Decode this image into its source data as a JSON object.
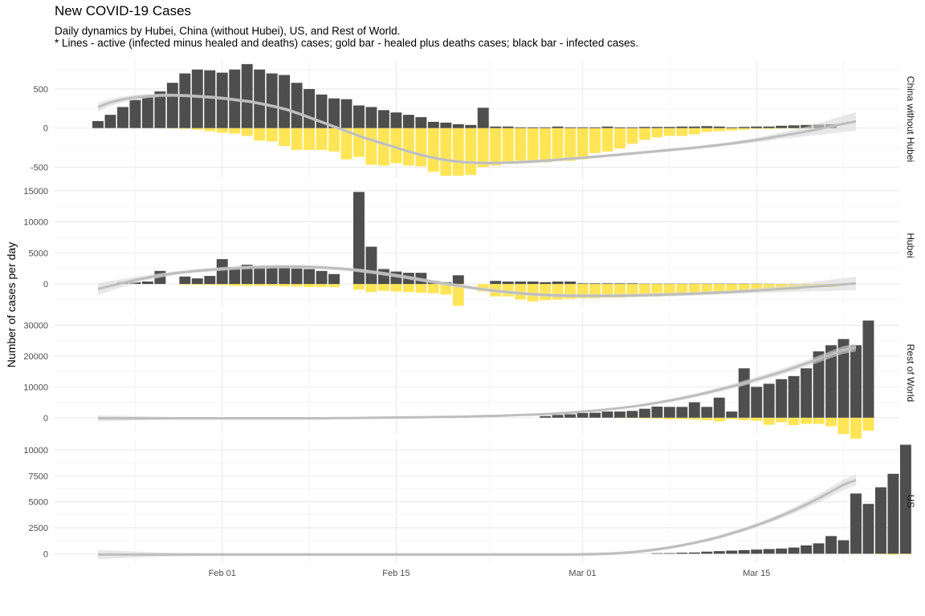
{
  "chart_data": {
    "type": "bar",
    "title": "New COVID-19 Cases",
    "subtitle_line1": "Daily dynamics by Hubei, China (without Hubei), US, and Rest of World.",
    "subtitle_line2": "* Lines - active (infected minus healed and deaths) cases; gold bar - healed plus deaths cases; black bar - infected cases.",
    "ylabel": "Number of cases per day",
    "xlabel": "",
    "x_start": "2020-01-22",
    "x_end": "2020-03-23",
    "x_ticks": [
      {
        "date": "2020-02-01",
        "label": "Feb 01"
      },
      {
        "date": "2020-02-15",
        "label": "Feb 15"
      },
      {
        "date": "2020-03-01",
        "label": "Mar 01"
      },
      {
        "date": "2020-03-15",
        "label": "Mar 15"
      }
    ],
    "colors": {
      "infected_bar": "#4a4a4a",
      "healed_deaths_bar": "#ffe44d",
      "active_line": "#bebebe",
      "ribbon": "#d9d9d9",
      "grid": "#ebebeb"
    },
    "panels": [
      {
        "name": "China without Hubei",
        "ylim": [
          -640,
          870
        ],
        "yticks": [
          -500,
          0,
          500
        ],
        "infected": [
          90,
          170,
          270,
          360,
          410,
          470,
          580,
          700,
          750,
          740,
          710,
          750,
          820,
          750,
          700,
          680,
          580,
          500,
          430,
          380,
          370,
          290,
          270,
          230,
          200,
          170,
          140,
          80,
          70,
          50,
          40,
          260,
          20,
          20,
          10,
          10,
          10,
          20,
          10,
          10,
          10,
          20,
          10,
          10,
          15,
          15,
          15,
          20,
          20,
          25,
          20,
          10,
          15,
          20,
          20,
          30,
          35,
          40,
          45,
          50
        ],
        "healed": [
          0,
          0,
          0,
          0,
          0,
          0,
          -5,
          -10,
          -20,
          -40,
          -60,
          -70,
          -100,
          -160,
          -170,
          -230,
          -280,
          -280,
          -280,
          -300,
          -400,
          -370,
          -470,
          -480,
          -450,
          -480,
          -490,
          -560,
          -610,
          -610,
          -600,
          -500,
          -480,
          -450,
          -420,
          -420,
          -440,
          -420,
          -420,
          -400,
          -320,
          -300,
          -260,
          -200,
          -150,
          -120,
          -100,
          -100,
          -80,
          -50,
          -40,
          -30,
          -20,
          -10,
          -10,
          -5,
          -5,
          -5,
          -5,
          -5
        ],
        "active_line": [
          270,
          330,
          370,
          395,
          410,
          420,
          420,
          415,
          405,
          395,
          380,
          360,
          340,
          310,
          275,
          235,
          180,
          120,
          60,
          0,
          -60,
          -120,
          -170,
          -220,
          -270,
          -320,
          -360,
          -395,
          -420,
          -437,
          -445,
          -447,
          -445,
          -440,
          -432,
          -422,
          -410,
          -398,
          -385,
          -372,
          -358,
          -344,
          -330,
          -315,
          -300,
          -285,
          -270,
          -255,
          -238,
          -220,
          -200,
          -178,
          -155,
          -130,
          -100,
          -75,
          -45,
          -15,
          20,
          55,
          85
        ],
        "ribbon_half": [
          55,
          45,
          38,
          30,
          25,
          22,
          20,
          20,
          20,
          20,
          20,
          20,
          20,
          20,
          20,
          20,
          20,
          20,
          20,
          20,
          20,
          20,
          20,
          20,
          20,
          20,
          20,
          20,
          20,
          20,
          20,
          20,
          20,
          20,
          20,
          20,
          20,
          20,
          20,
          20,
          20,
          20,
          20,
          20,
          20,
          20,
          20,
          20,
          20,
          20,
          22,
          25,
          30,
          35,
          40,
          50,
          60,
          75,
          90,
          105,
          120
        ]
      },
      {
        "name": "Hubei",
        "ylim": [
          -3600,
          16000
        ],
        "yticks": [
          0,
          5000,
          10000,
          15000
        ],
        "infected": [
          0,
          0,
          300,
          300,
          400,
          2100,
          0,
          1200,
          900,
          1300,
          4000,
          2500,
          3100,
          2900,
          2800,
          2600,
          2500,
          2400,
          2100,
          1600,
          0,
          14800,
          6000,
          2400,
          2000,
          1800,
          1800,
          500,
          300,
          1400,
          0,
          0,
          500,
          400,
          400,
          400,
          300,
          400,
          400,
          100,
          100,
          100,
          100,
          100,
          50,
          50,
          50,
          50,
          50,
          50,
          50,
          50,
          50,
          40,
          30,
          20,
          20,
          10,
          5,
          5
        ],
        "healed": [
          0,
          0,
          0,
          0,
          0,
          0,
          0,
          -100,
          -100,
          -150,
          -200,
          -300,
          -300,
          -300,
          -300,
          -400,
          -400,
          -500,
          -500,
          -500,
          0,
          -900,
          -1300,
          -1100,
          -1200,
          -1300,
          -1400,
          -1500,
          -1700,
          -3500,
          0,
          -1200,
          -2000,
          -2000,
          -2500,
          -2800,
          -2600,
          -2500,
          -2400,
          -2300,
          -2300,
          -2200,
          -2200,
          -2100,
          -2000,
          -2000,
          -1900,
          -1800,
          -1700,
          -1600,
          -1500,
          -1400,
          -1300,
          -1200,
          -1100,
          -1000,
          -900,
          -700,
          -500,
          -500
        ],
        "active_line": [
          -800,
          -300,
          200,
          650,
          1050,
          1400,
          1700,
          1950,
          2150,
          2300,
          2450,
          2580,
          2680,
          2740,
          2780,
          2790,
          2770,
          2720,
          2630,
          2500,
          2330,
          2100,
          1840,
          1540,
          1220,
          880,
          540,
          210,
          -120,
          -430,
          -720,
          -990,
          -1220,
          -1420,
          -1590,
          -1720,
          -1810,
          -1870,
          -1900,
          -1910,
          -1900,
          -1880,
          -1850,
          -1810,
          -1760,
          -1700,
          -1640,
          -1570,
          -1490,
          -1400,
          -1300,
          -1190,
          -1070,
          -940,
          -800,
          -660,
          -510,
          -360,
          -210,
          -60,
          90
        ],
        "ribbon_half": [
          950,
          800,
          650,
          520,
          420,
          360,
          320,
          300,
          300,
          300,
          300,
          300,
          300,
          300,
          300,
          300,
          300,
          300,
          300,
          300,
          300,
          300,
          300,
          300,
          300,
          300,
          300,
          300,
          300,
          300,
          300,
          300,
          300,
          300,
          300,
          300,
          300,
          300,
          300,
          300,
          300,
          300,
          300,
          300,
          300,
          300,
          300,
          300,
          300,
          300,
          320,
          350,
          400,
          460,
          530,
          600,
          700,
          800,
          900,
          1000,
          1100
        ]
      },
      {
        "name": "Rest of World",
        "ylim": [
          -5000,
          34000
        ],
        "yticks": [
          0,
          10000,
          20000,
          30000
        ],
        "infected": [
          0,
          0,
          0,
          0,
          0,
          0,
          0,
          0,
          0,
          0,
          0,
          0,
          0,
          0,
          0,
          0,
          0,
          0,
          0,
          0,
          0,
          0,
          0,
          0,
          0,
          0,
          0,
          0,
          0,
          0,
          0,
          0,
          0,
          0,
          0,
          0,
          500,
          900,
          1100,
          1500,
          1600,
          2000,
          2000,
          2200,
          2900,
          3600,
          3500,
          3500,
          5000,
          3500,
          6500,
          2000,
          16000,
          10000,
          11000,
          12500,
          13500,
          16000,
          21500,
          23500,
          25500,
          23500,
          31500
        ],
        "healed": [
          0,
          0,
          0,
          0,
          0,
          0,
          0,
          0,
          0,
          0,
          0,
          0,
          0,
          0,
          0,
          0,
          0,
          0,
          0,
          0,
          0,
          0,
          0,
          0,
          0,
          0,
          0,
          0,
          0,
          0,
          0,
          0,
          0,
          0,
          0,
          0,
          0,
          0,
          0,
          0,
          0,
          0,
          -100,
          -100,
          -200,
          -300,
          -500,
          -500,
          -600,
          -800,
          -1200,
          -500,
          -800,
          -1000,
          -2300,
          -1500,
          -2400,
          -2000,
          -2000,
          -2800,
          -5300,
          -6800,
          -4200
        ],
        "active_line": [
          -200,
          -200,
          -200,
          -200,
          -200,
          -200,
          -200,
          -200,
          -200,
          -200,
          -200,
          -200,
          -200,
          -200,
          -200,
          -200,
          -200,
          -200,
          -150,
          -100,
          -50,
          0,
          50,
          100,
          150,
          200,
          250,
          300,
          400,
          500,
          600,
          750,
          900,
          1050,
          1250,
          1500,
          1800,
          2150,
          2550,
          3000,
          3500,
          4100,
          4800,
          5550,
          6400,
          7300,
          8300,
          9400,
          10500,
          11700,
          13000,
          14300,
          15700,
          17200,
          18700,
          20300,
          21900,
          22800
        ],
        "ribbon_half": [
          1000,
          900,
          800,
          700,
          600,
          500,
          400,
          350,
          300,
          300,
          300,
          300,
          300,
          300,
          300,
          300,
          300,
          300,
          300,
          300,
          300,
          300,
          300,
          300,
          300,
          300,
          300,
          300,
          300,
          300,
          300,
          300,
          300,
          300,
          300,
          300,
          300,
          300,
          300,
          350,
          400,
          450,
          500,
          550,
          600,
          650,
          700,
          750,
          800,
          850,
          900,
          950,
          1000,
          1050,
          1100,
          1150,
          1200,
          1300
        ]
      },
      {
        "name": "US",
        "ylim": [
          -900,
          11000
        ],
        "yticks": [
          0,
          2500,
          5000,
          7500,
          10000
        ],
        "infected": [
          0,
          0,
          0,
          0,
          0,
          0,
          0,
          0,
          0,
          0,
          0,
          0,
          0,
          0,
          0,
          0,
          0,
          0,
          0,
          0,
          0,
          0,
          0,
          0,
          0,
          0,
          0,
          0,
          0,
          0,
          0,
          0,
          0,
          0,
          0,
          0,
          0,
          0,
          0,
          0,
          0,
          0,
          0,
          0,
          0,
          50,
          60,
          100,
          120,
          200,
          250,
          300,
          350,
          400,
          450,
          500,
          600,
          800,
          1000,
          1700,
          1300,
          5800,
          4800,
          6400,
          7700,
          10500
        ],
        "healed": [
          0,
          0,
          0,
          0,
          0,
          0,
          0,
          0,
          0,
          0,
          0,
          0,
          0,
          0,
          0,
          0,
          0,
          0,
          0,
          0,
          0,
          0,
          0,
          0,
          0,
          0,
          0,
          0,
          0,
          0,
          0,
          0,
          0,
          0,
          0,
          0,
          0,
          0,
          0,
          0,
          0,
          0,
          0,
          0,
          0,
          0,
          0,
          0,
          0,
          0,
          0,
          0,
          0,
          0,
          0,
          0,
          0,
          0,
          0,
          -5,
          -5,
          -10,
          -10,
          -50,
          -100,
          -50
        ],
        "active_line": [
          -80,
          -80,
          -80,
          -80,
          -80,
          -80,
          -80,
          -80,
          -80,
          -80,
          -80,
          -80,
          -80,
          -80,
          -80,
          -80,
          -80,
          -80,
          -80,
          -80,
          -80,
          -80,
          -80,
          -80,
          -80,
          -80,
          -80,
          -80,
          -80,
          -80,
          -80,
          -80,
          -80,
          -80,
          -80,
          -80,
          -80,
          -80,
          -80,
          -60,
          -40,
          0,
          60,
          150,
          270,
          420,
          600,
          810,
          1050,
          1320,
          1620,
          1960,
          2330,
          2740,
          3180,
          3660,
          4180,
          4740,
          5340,
          5980,
          6660,
          7100
        ],
        "ribbon_half": [
          450,
          400,
          350,
          300,
          250,
          200,
          180,
          160,
          150,
          150,
          150,
          150,
          150,
          150,
          150,
          150,
          150,
          150,
          150,
          150,
          150,
          150,
          150,
          150,
          150,
          150,
          150,
          150,
          150,
          150,
          150,
          150,
          150,
          150,
          150,
          150,
          150,
          150,
          150,
          150,
          150,
          150,
          150,
          150,
          150,
          150,
          150,
          150,
          160,
          170,
          180,
          190,
          200,
          210,
          230,
          260,
          300,
          350,
          400,
          450,
          500,
          550
        ]
      }
    ]
  }
}
